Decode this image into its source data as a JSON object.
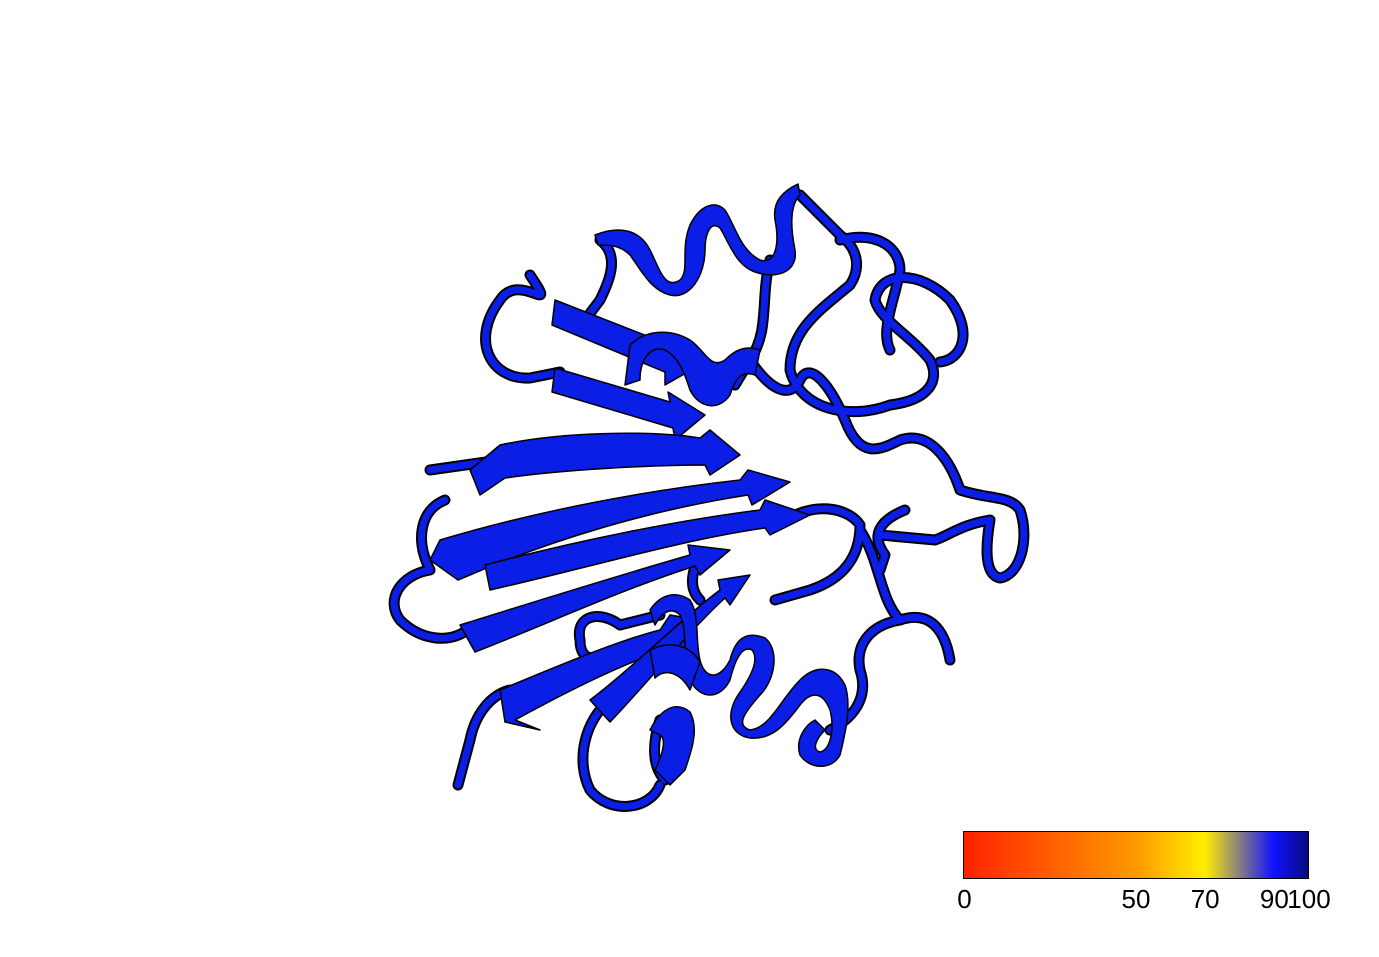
{
  "colors": {
    "structure": "#0a1ee6",
    "outline": "#000000",
    "background": "#ffffff"
  },
  "colorbar": {
    "min": 0,
    "max": 100,
    "stops": [
      {
        "value": 0,
        "color": "#ff2200"
      },
      {
        "value": 50,
        "color": "#ff9900"
      },
      {
        "value": 70,
        "color": "#ffee00"
      },
      {
        "value": 90,
        "color": "#1111ff"
      },
      {
        "value": 100,
        "color": "#0a0a80"
      }
    ],
    "ticks": [
      {
        "value": 0,
        "label": "0"
      },
      {
        "value": 50,
        "label": "50"
      },
      {
        "value": 70,
        "label": "70"
      },
      {
        "value": 90,
        "label": "90"
      },
      {
        "value": 100,
        "label": "100"
      }
    ]
  }
}
